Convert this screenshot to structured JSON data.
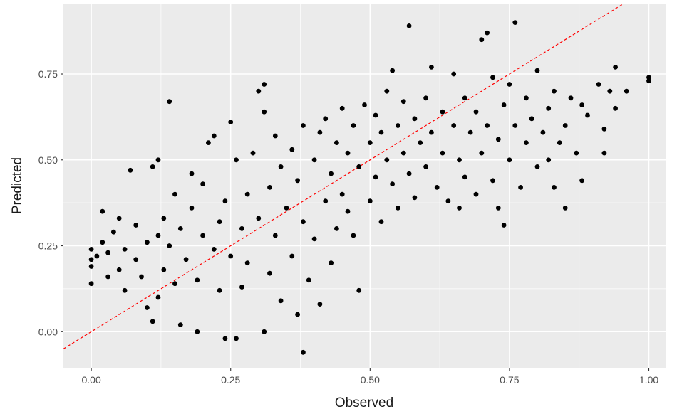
{
  "chart_data": {
    "type": "scatter",
    "title": "",
    "xlabel": "Observed",
    "ylabel": "Predicted",
    "xlim": [
      -0.05,
      1.03
    ],
    "ylim": [
      -0.105,
      0.955
    ],
    "x_ticks": [
      0.0,
      0.25,
      0.5,
      0.75,
      1.0
    ],
    "x_tick_labels": [
      "0.00",
      "0.25",
      "0.50",
      "0.75",
      "1.00"
    ],
    "y_ticks": [
      0.0,
      0.25,
      0.5,
      0.75
    ],
    "y_tick_labels": [
      "0.00",
      "0.25",
      "0.50",
      "0.75"
    ],
    "grid": true,
    "panel_background": "#ebebeb",
    "grid_color": "#ffffff",
    "point_color": "#000000",
    "reference_line": {
      "intercept": 0.0,
      "slope": 1.0,
      "color": "#ff0000",
      "style": "dashed"
    },
    "points": [
      [
        0.0,
        0.24
      ],
      [
        0.0,
        0.21
      ],
      [
        0.0,
        0.19
      ],
      [
        0.0,
        0.14
      ],
      [
        0.01,
        0.22
      ],
      [
        0.02,
        0.35
      ],
      [
        0.02,
        0.26
      ],
      [
        0.03,
        0.23
      ],
      [
        0.03,
        0.16
      ],
      [
        0.04,
        0.29
      ],
      [
        0.05,
        0.33
      ],
      [
        0.05,
        0.18
      ],
      [
        0.06,
        0.24
      ],
      [
        0.06,
        0.12
      ],
      [
        0.07,
        0.47
      ],
      [
        0.08,
        0.31
      ],
      [
        0.08,
        0.21
      ],
      [
        0.09,
        0.16
      ],
      [
        0.1,
        0.26
      ],
      [
        0.1,
        0.07
      ],
      [
        0.11,
        0.03
      ],
      [
        0.11,
        0.48
      ],
      [
        0.12,
        0.5
      ],
      [
        0.12,
        0.28
      ],
      [
        0.12,
        0.1
      ],
      [
        0.13,
        0.33
      ],
      [
        0.13,
        0.18
      ],
      [
        0.14,
        0.67
      ],
      [
        0.14,
        0.25
      ],
      [
        0.15,
        0.4
      ],
      [
        0.15,
        0.14
      ],
      [
        0.16,
        0.02
      ],
      [
        0.16,
        0.3
      ],
      [
        0.17,
        0.21
      ],
      [
        0.18,
        0.46
      ],
      [
        0.18,
        0.36
      ],
      [
        0.19,
        0.15
      ],
      [
        0.19,
        0.0
      ],
      [
        0.2,
        0.28
      ],
      [
        0.2,
        0.43
      ],
      [
        0.21,
        0.55
      ],
      [
        0.22,
        0.57
      ],
      [
        0.22,
        0.24
      ],
      [
        0.23,
        0.32
      ],
      [
        0.23,
        0.12
      ],
      [
        0.24,
        0.38
      ],
      [
        0.24,
        -0.02
      ],
      [
        0.25,
        0.61
      ],
      [
        0.25,
        0.22
      ],
      [
        0.26,
        -0.02
      ],
      [
        0.26,
        0.5
      ],
      [
        0.27,
        0.3
      ],
      [
        0.27,
        0.13
      ],
      [
        0.28,
        0.4
      ],
      [
        0.28,
        0.2
      ],
      [
        0.29,
        0.52
      ],
      [
        0.3,
        0.7
      ],
      [
        0.3,
        0.33
      ],
      [
        0.31,
        0.72
      ],
      [
        0.31,
        0.64
      ],
      [
        0.31,
        0.0
      ],
      [
        0.32,
        0.42
      ],
      [
        0.32,
        0.17
      ],
      [
        0.33,
        0.57
      ],
      [
        0.33,
        0.28
      ],
      [
        0.34,
        0.48
      ],
      [
        0.34,
        0.09
      ],
      [
        0.35,
        0.36
      ],
      [
        0.36,
        0.53
      ],
      [
        0.36,
        0.22
      ],
      [
        0.37,
        0.05
      ],
      [
        0.37,
        0.44
      ],
      [
        0.38,
        0.6
      ],
      [
        0.38,
        0.32
      ],
      [
        0.38,
        -0.06
      ],
      [
        0.39,
        0.15
      ],
      [
        0.4,
        0.5
      ],
      [
        0.4,
        0.27
      ],
      [
        0.41,
        0.58
      ],
      [
        0.41,
        0.08
      ],
      [
        0.42,
        0.38
      ],
      [
        0.42,
        0.62
      ],
      [
        0.43,
        0.46
      ],
      [
        0.43,
        0.2
      ],
      [
        0.44,
        0.55
      ],
      [
        0.44,
        0.3
      ],
      [
        0.45,
        0.65
      ],
      [
        0.45,
        0.4
      ],
      [
        0.46,
        0.52
      ],
      [
        0.46,
        0.35
      ],
      [
        0.47,
        0.6
      ],
      [
        0.47,
        0.28
      ],
      [
        0.48,
        0.12
      ],
      [
        0.48,
        0.48
      ],
      [
        0.49,
        0.66
      ],
      [
        0.5,
        0.55
      ],
      [
        0.5,
        0.38
      ],
      [
        0.51,
        0.63
      ],
      [
        0.51,
        0.45
      ],
      [
        0.52,
        0.58
      ],
      [
        0.52,
        0.32
      ],
      [
        0.53,
        0.7
      ],
      [
        0.53,
        0.5
      ],
      [
        0.54,
        0.76
      ],
      [
        0.54,
        0.43
      ],
      [
        0.55,
        0.6
      ],
      [
        0.55,
        0.36
      ],
      [
        0.56,
        0.67
      ],
      [
        0.56,
        0.52
      ],
      [
        0.57,
        0.89
      ],
      [
        0.57,
        0.46
      ],
      [
        0.58,
        0.62
      ],
      [
        0.58,
        0.39
      ],
      [
        0.59,
        0.55
      ],
      [
        0.6,
        0.68
      ],
      [
        0.6,
        0.48
      ],
      [
        0.61,
        0.77
      ],
      [
        0.61,
        0.58
      ],
      [
        0.62,
        0.42
      ],
      [
        0.63,
        0.64
      ],
      [
        0.63,
        0.52
      ],
      [
        0.64,
        0.38
      ],
      [
        0.65,
        0.75
      ],
      [
        0.65,
        0.6
      ],
      [
        0.66,
        0.36
      ],
      [
        0.66,
        0.5
      ],
      [
        0.67,
        0.68
      ],
      [
        0.67,
        0.45
      ],
      [
        0.68,
        0.58
      ],
      [
        0.69,
        0.64
      ],
      [
        0.69,
        0.4
      ],
      [
        0.7,
        0.85
      ],
      [
        0.7,
        0.52
      ],
      [
        0.71,
        0.87
      ],
      [
        0.71,
        0.6
      ],
      [
        0.72,
        0.44
      ],
      [
        0.72,
        0.74
      ],
      [
        0.73,
        0.56
      ],
      [
        0.73,
        0.36
      ],
      [
        0.74,
        0.31
      ],
      [
        0.74,
        0.66
      ],
      [
        0.75,
        0.72
      ],
      [
        0.75,
        0.5
      ],
      [
        0.76,
        0.9
      ],
      [
        0.76,
        0.6
      ],
      [
        0.77,
        0.42
      ],
      [
        0.78,
        0.55
      ],
      [
        0.78,
        0.68
      ],
      [
        0.79,
        0.62
      ],
      [
        0.8,
        0.76
      ],
      [
        0.8,
        0.48
      ],
      [
        0.81,
        0.58
      ],
      [
        0.82,
        0.65
      ],
      [
        0.82,
        0.5
      ],
      [
        0.83,
        0.7
      ],
      [
        0.83,
        0.42
      ],
      [
        0.84,
        0.55
      ],
      [
        0.85,
        0.36
      ],
      [
        0.85,
        0.6
      ],
      [
        0.86,
        0.68
      ],
      [
        0.87,
        0.52
      ],
      [
        0.88,
        0.66
      ],
      [
        0.88,
        0.44
      ],
      [
        0.89,
        0.63
      ],
      [
        0.91,
        0.72
      ],
      [
        0.92,
        0.59
      ],
      [
        0.92,
        0.52
      ],
      [
        0.93,
        0.7
      ],
      [
        0.94,
        0.77
      ],
      [
        0.94,
        0.65
      ],
      [
        0.96,
        0.7
      ],
      [
        1.0,
        0.74
      ],
      [
        1.0,
        0.73
      ]
    ],
    "annotations": []
  }
}
